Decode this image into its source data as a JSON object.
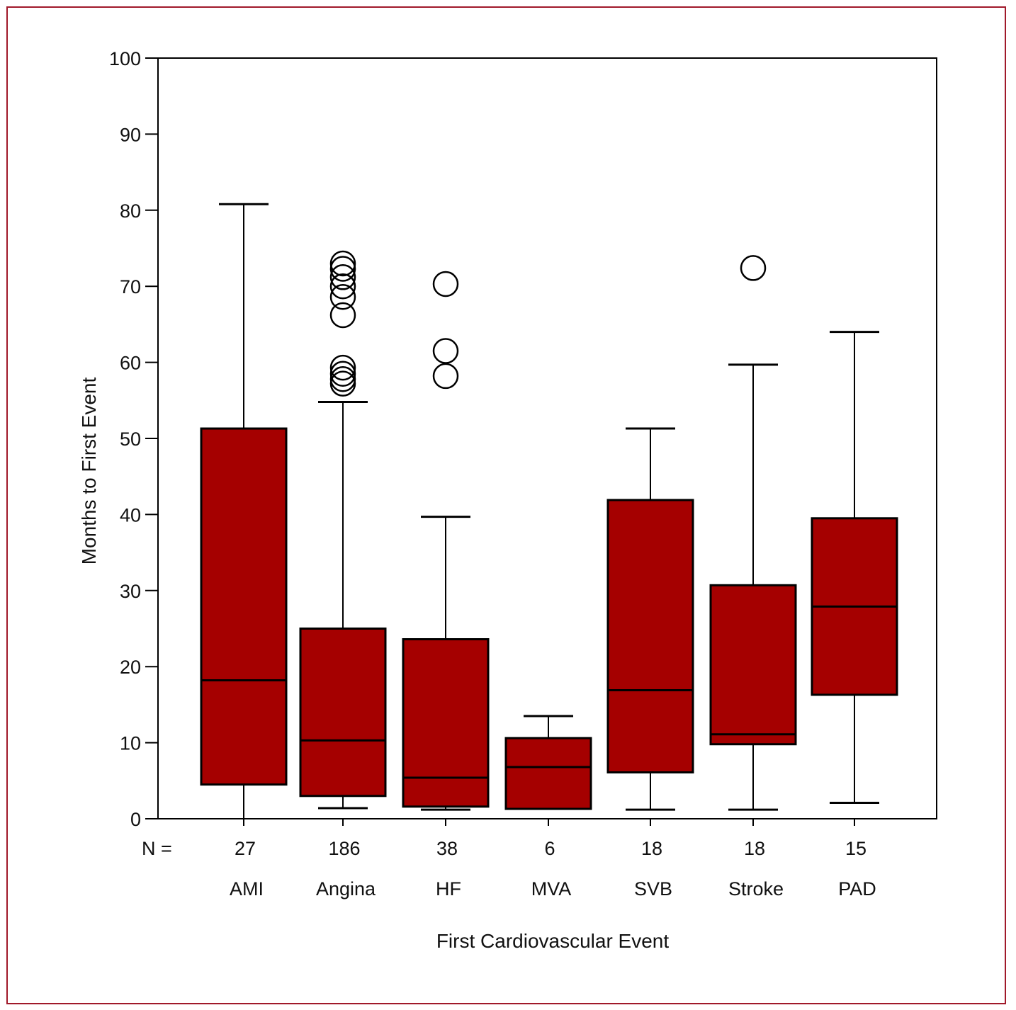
{
  "chart_data": {
    "type": "boxplot",
    "xlabel": "First Cardiovascular Event",
    "ylabel": "Months to First Event",
    "ylim": [
      0,
      100
    ],
    "yticks": [
      "0",
      "10",
      "20",
      "30",
      "40",
      "50",
      "60",
      "70",
      "80",
      "90",
      "100"
    ],
    "grid": false,
    "n_prefix": "N =",
    "colors": {
      "box_fill": "#a50000",
      "frame": "#a0192a"
    },
    "categories": [
      "AMI",
      "Angina",
      "HF",
      "MVA",
      "SVB",
      "Stroke",
      "PAD"
    ],
    "n": [
      "27",
      "186",
      "38",
      "6",
      "18",
      "18",
      "15"
    ],
    "boxes": [
      {
        "category": "AMI",
        "whisker_low": 0,
        "q1": 4.5,
        "median": 18.2,
        "q3": 51.3,
        "whisker_high": 80.8,
        "outliers": []
      },
      {
        "category": "Angina",
        "whisker_low": 1.4,
        "q1": 3.0,
        "median": 10.3,
        "q3": 25.0,
        "whisker_high": 54.8,
        "outliers": [
          57.2,
          57.8,
          58.5,
          59.3,
          66.2,
          68.6,
          70.0,
          71.2,
          72.3,
          73.0
        ]
      },
      {
        "category": "HF",
        "whisker_low": 1.2,
        "q1": 1.6,
        "median": 5.4,
        "q3": 23.6,
        "whisker_high": 39.7,
        "outliers": [
          58.2,
          61.5,
          70.3
        ]
      },
      {
        "category": "MVA",
        "whisker_low": 1.3,
        "q1": 1.3,
        "median": 6.8,
        "q3": 10.6,
        "whisker_high": 13.5,
        "outliers": []
      },
      {
        "category": "SVB",
        "whisker_low": 1.2,
        "q1": 6.1,
        "median": 16.9,
        "q3": 41.9,
        "whisker_high": 51.3,
        "outliers": []
      },
      {
        "category": "Stroke",
        "whisker_low": 1.2,
        "q1": 9.8,
        "median": 11.1,
        "q3": 30.7,
        "whisker_high": 59.7,
        "outliers": [
          72.4
        ]
      },
      {
        "category": "PAD",
        "whisker_low": 2.1,
        "q1": 16.3,
        "median": 27.9,
        "q3": 39.5,
        "whisker_high": 64.0,
        "outliers": []
      }
    ]
  }
}
